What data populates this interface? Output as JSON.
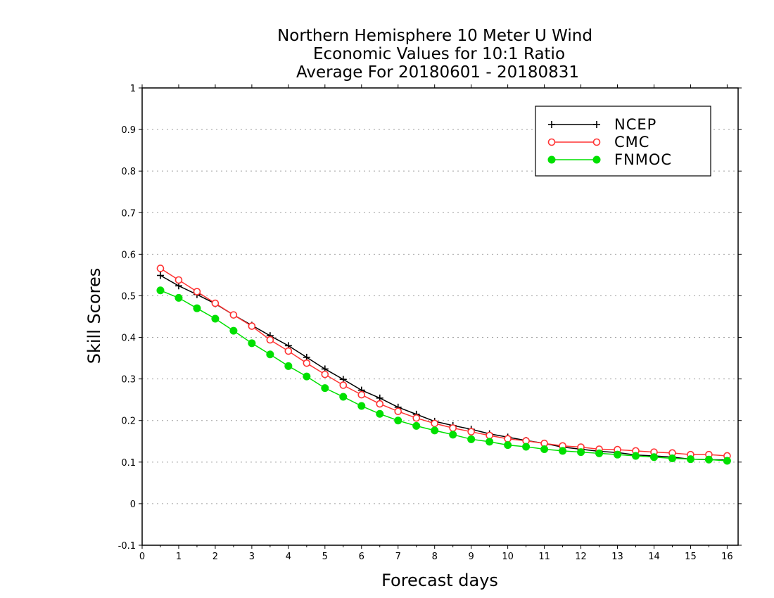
{
  "chart_data": {
    "type": "line",
    "title": [
      "Northern Hemisphere 10 Meter U Wind",
      "Economic Values for 10:1 Ratio",
      "Average For 20180601 - 20180831"
    ],
    "xlabel": "Forecast days",
    "ylabel": "Skill Scores",
    "xlim": [
      0,
      16.3
    ],
    "ylim": [
      -0.1,
      1
    ],
    "xticks": [
      "0",
      "1",
      "2",
      "3",
      "4",
      "5",
      "6",
      "7",
      "8",
      "9",
      "10",
      "11",
      "12",
      "13",
      "14",
      "15",
      "16"
    ],
    "yticks": [
      "-0.1",
      "0",
      "0.1",
      "0.2",
      "0.3",
      "0.4",
      "0.5",
      "0.6",
      "0.7",
      "0.8",
      "0.9",
      "1"
    ],
    "grid": true,
    "legend_position": "top-right",
    "x": [
      0.5,
      1,
      1.5,
      2,
      2.5,
      3,
      3.5,
      4,
      4.5,
      5,
      5.5,
      6,
      6.5,
      7,
      7.5,
      8,
      8.5,
      9,
      9.5,
      10,
      10.5,
      11,
      11.5,
      12,
      12.5,
      13,
      13.5,
      14,
      14.5,
      15,
      15.5,
      16
    ],
    "series": [
      {
        "name": "NCEP",
        "color": "#000000",
        "marker": "plus",
        "values": [
          0.549,
          0.524,
          0.503,
          0.481,
          0.454,
          0.429,
          0.404,
          0.38,
          0.352,
          0.324,
          0.299,
          0.273,
          0.254,
          0.232,
          0.215,
          0.198,
          0.188,
          0.179,
          0.168,
          0.16,
          0.152,
          0.145,
          0.136,
          0.131,
          0.126,
          0.123,
          0.117,
          0.115,
          0.112,
          0.107,
          0.106,
          0.105
        ]
      },
      {
        "name": "CMC",
        "color": "#ff3333",
        "marker": "open-circle",
        "values": [
          0.566,
          0.538,
          0.51,
          0.482,
          0.454,
          0.427,
          0.394,
          0.367,
          0.338,
          0.311,
          0.285,
          0.262,
          0.24,
          0.222,
          0.206,
          0.193,
          0.182,
          0.173,
          0.164,
          0.156,
          0.151,
          0.145,
          0.139,
          0.136,
          0.131,
          0.13,
          0.127,
          0.124,
          0.122,
          0.118,
          0.118,
          0.115
        ]
      },
      {
        "name": "FNMOC",
        "color": "#00e000",
        "marker": "filled-circle",
        "values": [
          0.513,
          0.495,
          0.47,
          0.445,
          0.416,
          0.386,
          0.359,
          0.331,
          0.306,
          0.278,
          0.257,
          0.235,
          0.216,
          0.2,
          0.187,
          0.176,
          0.166,
          0.155,
          0.149,
          0.141,
          0.137,
          0.131,
          0.127,
          0.124,
          0.121,
          0.118,
          0.115,
          0.112,
          0.109,
          0.107,
          0.106,
          0.103
        ]
      }
    ]
  }
}
